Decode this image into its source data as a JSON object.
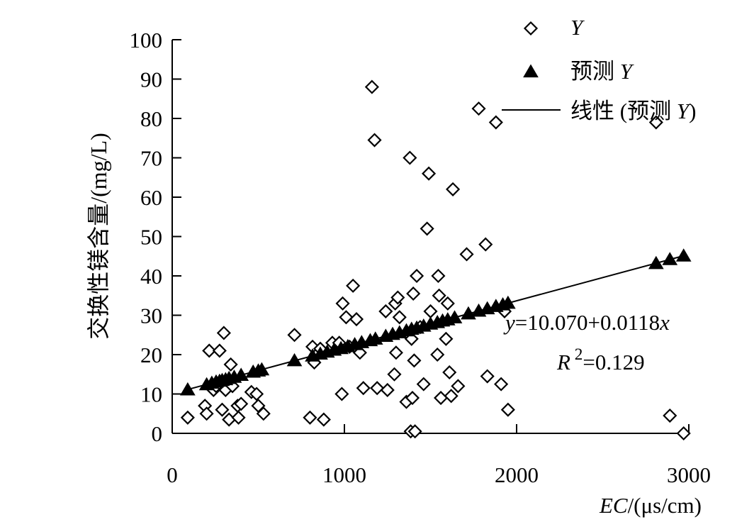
{
  "chart_data": {
    "type": "scatter",
    "title": "",
    "ylabel": "交换性镁含量/(mg/L)",
    "xlabel": {
      "italic": "EC",
      "rest": "/(μs/cm)"
    },
    "xlim": [
      0,
      3000
    ],
    "ylim": [
      0,
      100
    ],
    "xticks": [
      0,
      1000,
      2000,
      3000
    ],
    "yticks": [
      0,
      10,
      20,
      30,
      40,
      50,
      60,
      70,
      80,
      90,
      100
    ],
    "grid": false,
    "legend_position": "top-right",
    "legend": [
      {
        "kind": "diamond",
        "label_italic": "Y",
        "label_text": ""
      },
      {
        "kind": "triangle",
        "label_text": "预测",
        "label_italic": "Y"
      },
      {
        "kind": "line",
        "label_text": "线性 (预测",
        "label_italic": "Y",
        "label_suffix": ")"
      }
    ],
    "annotation": {
      "equation": {
        "lhs": "y",
        "rhs": "=10.070+0.0118",
        "var": "x"
      },
      "r2": {
        "var": "R",
        "sup": "2",
        "rest": "=0.129"
      }
    },
    "trendline": {
      "intercept": 10.07,
      "slope": 0.0118,
      "x_range": [
        90,
        2970
      ]
    },
    "series": [
      {
        "name": "Y",
        "marker": "diamond",
        "points": [
          [
            90,
            4
          ],
          [
            190,
            7
          ],
          [
            200,
            5
          ],
          [
            215,
            21
          ],
          [
            240,
            11
          ],
          [
            255,
            12
          ],
          [
            275,
            21
          ],
          [
            290,
            6
          ],
          [
            300,
            25.5
          ],
          [
            310,
            11
          ],
          [
            330,
            3.5
          ],
          [
            340,
            17.5
          ],
          [
            350,
            12
          ],
          [
            380,
            7
          ],
          [
            385,
            4
          ],
          [
            400,
            7.5
          ],
          [
            460,
            10.5
          ],
          [
            490,
            10
          ],
          [
            500,
            7
          ],
          [
            530,
            5
          ],
          [
            710,
            25
          ],
          [
            800,
            4
          ],
          [
            815,
            22
          ],
          [
            825,
            18
          ],
          [
            860,
            21.5
          ],
          [
            880,
            3.5
          ],
          [
            930,
            23
          ],
          [
            970,
            23
          ],
          [
            985,
            10
          ],
          [
            990,
            33
          ],
          [
            1010,
            29.5
          ],
          [
            1030,
            22
          ],
          [
            1050,
            37.5
          ],
          [
            1070,
            29
          ],
          [
            1090,
            20.5
          ],
          [
            1110,
            11.5
          ],
          [
            1160,
            88
          ],
          [
            1175,
            74.5
          ],
          [
            1190,
            11.5
          ],
          [
            1240,
            31
          ],
          [
            1250,
            11
          ],
          [
            1290,
            15
          ],
          [
            1295,
            33
          ],
          [
            1300,
            20.5
          ],
          [
            1310,
            34.5
          ],
          [
            1320,
            29.5
          ],
          [
            1360,
            8
          ],
          [
            1380,
            70
          ],
          [
            1385,
            0.5
          ],
          [
            1390,
            24
          ],
          [
            1395,
            9
          ],
          [
            1400,
            35.5
          ],
          [
            1405,
            18.5
          ],
          [
            1410,
            0.5
          ],
          [
            1420,
            40
          ],
          [
            1440,
            27
          ],
          [
            1460,
            12.5
          ],
          [
            1480,
            52
          ],
          [
            1490,
            66
          ],
          [
            1500,
            31
          ],
          [
            1540,
            20
          ],
          [
            1545,
            40
          ],
          [
            1550,
            35
          ],
          [
            1560,
            9
          ],
          [
            1590,
            24
          ],
          [
            1600,
            33
          ],
          [
            1610,
            15.5
          ],
          [
            1620,
            9.5
          ],
          [
            1630,
            62
          ],
          [
            1660,
            12
          ],
          [
            1710,
            45.5
          ],
          [
            1780,
            82.5
          ],
          [
            1820,
            48
          ],
          [
            1830,
            14.5
          ],
          [
            1880,
            79
          ],
          [
            1910,
            12.5
          ],
          [
            1930,
            31
          ],
          [
            1950,
            6
          ],
          [
            2810,
            79
          ],
          [
            2890,
            4.5
          ],
          [
            2970,
            0
          ]
        ]
      },
      {
        "name": "预测Y",
        "marker": "triangle",
        "points": [
          [
            90,
            11.1
          ],
          [
            200,
            12.4
          ],
          [
            230,
            12.8
          ],
          [
            255,
            13.1
          ],
          [
            275,
            13.3
          ],
          [
            290,
            13.5
          ],
          [
            310,
            13.7
          ],
          [
            330,
            14
          ],
          [
            360,
            14.3
          ],
          [
            400,
            14.8
          ],
          [
            470,
            15.6
          ],
          [
            500,
            15.9
          ],
          [
            520,
            16.2
          ],
          [
            710,
            18.5
          ],
          [
            815,
            19.7
          ],
          [
            860,
            20.2
          ],
          [
            900,
            20.7
          ],
          [
            940,
            21.2
          ],
          [
            980,
            21.6
          ],
          [
            1020,
            22.1
          ],
          [
            1060,
            22.6
          ],
          [
            1100,
            23.1
          ],
          [
            1150,
            23.6
          ],
          [
            1180,
            24
          ],
          [
            1240,
            24.7
          ],
          [
            1280,
            25.2
          ],
          [
            1320,
            25.6
          ],
          [
            1360,
            26.1
          ],
          [
            1390,
            26.5
          ],
          [
            1420,
            26.8
          ],
          [
            1460,
            27.3
          ],
          [
            1500,
            27.8
          ],
          [
            1540,
            28.2
          ],
          [
            1570,
            28.6
          ],
          [
            1600,
            28.9
          ],
          [
            1640,
            29.4
          ],
          [
            1720,
            30.4
          ],
          [
            1780,
            31.1
          ],
          [
            1830,
            31.7
          ],
          [
            1880,
            32.3
          ],
          [
            1920,
            32.7
          ],
          [
            1950,
            33.1
          ],
          [
            2810,
            43.2
          ],
          [
            2890,
            44.2
          ],
          [
            2970,
            45.1
          ]
        ]
      }
    ]
  }
}
